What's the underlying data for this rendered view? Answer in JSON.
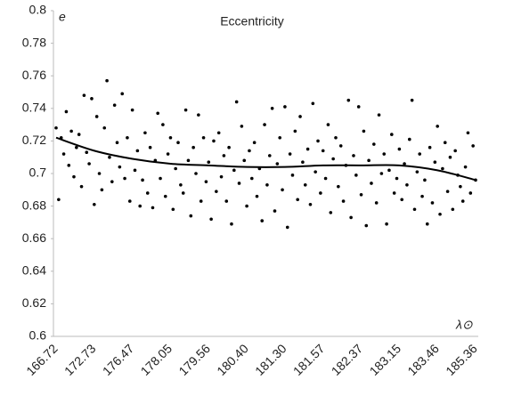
{
  "chart_data": {
    "type": "scatter",
    "title": "Eccentricity",
    "y_label": "e",
    "x_label": "λ⊙",
    "categories": [
      "166.72",
      null,
      null,
      null,
      null,
      null,
      null,
      null,
      null,
      null,
      null,
      null,
      null,
      null,
      null,
      "172.73",
      null,
      null,
      null,
      null,
      null,
      null,
      null,
      null,
      null,
      null,
      null,
      null,
      null,
      null,
      "176.47",
      null,
      null,
      null,
      null,
      null,
      null,
      null,
      null,
      null,
      null,
      null,
      null,
      null,
      null,
      "178.05",
      null,
      null,
      null,
      null,
      null,
      null,
      null,
      null,
      null,
      null,
      null,
      null,
      null,
      null,
      "179.56",
      null,
      null,
      null,
      null,
      null,
      null,
      null,
      null,
      null,
      null,
      null,
      null,
      null,
      null,
      "180.40",
      null,
      null,
      null,
      null,
      null,
      null,
      null,
      null,
      null,
      null,
      null,
      null,
      null,
      null,
      "181.30",
      null,
      null,
      null,
      null,
      null,
      null,
      null,
      null,
      null,
      null,
      null,
      null,
      null,
      null,
      "181.57",
      null,
      null,
      null,
      null,
      null,
      null,
      null,
      null,
      null,
      null,
      null,
      null,
      null,
      null,
      "182.37",
      null,
      null,
      null,
      null,
      null,
      null,
      null,
      null,
      null,
      null,
      null,
      null,
      null,
      null,
      "183.15",
      null,
      null,
      null,
      null,
      null,
      null,
      null,
      null,
      null,
      null,
      null,
      null,
      null,
      null,
      "183.46",
      null,
      null,
      null,
      null,
      null,
      null,
      null,
      null,
      null,
      null,
      null,
      null,
      null,
      null,
      "185.36"
    ],
    "values": [
      0.728,
      0.684,
      0.722,
      0.712,
      0.738,
      0.705,
      0.726,
      0.698,
      0.716,
      0.724,
      0.692,
      0.748,
      0.713,
      0.706,
      0.746,
      0.681,
      0.735,
      0.7,
      0.69,
      0.728,
      0.757,
      0.71,
      0.695,
      0.742,
      0.719,
      0.704,
      0.749,
      0.697,
      0.722,
      0.683,
      0.739,
      0.702,
      0.714,
      0.68,
      0.696,
      0.725,
      0.688,
      0.716,
      0.679,
      0.708,
      0.737,
      0.697,
      0.73,
      0.686,
      0.712,
      0.722,
      0.678,
      0.703,
      0.719,
      0.693,
      0.688,
      0.739,
      0.708,
      0.674,
      0.716,
      0.7,
      0.736,
      0.683,
      0.722,
      0.695,
      0.707,
      0.672,
      0.72,
      0.689,
      0.725,
      0.698,
      0.711,
      0.683,
      0.716,
      0.669,
      0.702,
      0.744,
      0.694,
      0.729,
      0.708,
      0.68,
      0.714,
      0.697,
      0.719,
      0.686,
      0.703,
      0.671,
      0.73,
      0.693,
      0.711,
      0.74,
      0.677,
      0.706,
      0.722,
      0.69,
      0.741,
      0.667,
      0.712,
      0.699,
      0.726,
      0.684,
      0.735,
      0.707,
      0.693,
      0.715,
      0.681,
      0.743,
      0.701,
      0.72,
      0.688,
      0.714,
      0.697,
      0.73,
      0.676,
      0.709,
      0.722,
      0.692,
      0.717,
      0.683,
      0.705,
      0.745,
      0.673,
      0.711,
      0.699,
      0.741,
      0.687,
      0.726,
      0.668,
      0.708,
      0.694,
      0.718,
      0.682,
      0.736,
      0.7,
      0.712,
      0.669,
      0.702,
      0.724,
      0.688,
      0.697,
      0.715,
      0.684,
      0.706,
      0.693,
      0.721,
      0.745,
      0.678,
      0.701,
      0.712,
      0.686,
      0.696,
      0.669,
      0.716,
      0.682,
      0.707,
      0.729,
      0.675,
      0.703,
      0.719,
      0.689,
      0.71,
      0.678,
      0.714,
      0.699,
      0.692,
      0.683,
      0.704,
      0.725,
      0.688,
      0.717,
      0.696
    ],
    "color": "#000000",
    "trend": {
      "x": [
        0,
        15,
        30,
        45,
        60,
        75,
        90,
        105,
        120,
        135,
        150,
        165
      ],
      "values": [
        0.722,
        0.714,
        0.709,
        0.706,
        0.705,
        0.704,
        0.704,
        0.705,
        0.705,
        0.705,
        0.702,
        0.696
      ],
      "color": "#000000"
    },
    "ylim": [
      0.6,
      0.8
    ],
    "yticks": [
      0.6,
      0.62,
      0.64,
      0.66,
      0.68,
      0.7,
      0.72,
      0.74,
      0.76,
      0.78,
      0.8
    ],
    "grid": false
  }
}
